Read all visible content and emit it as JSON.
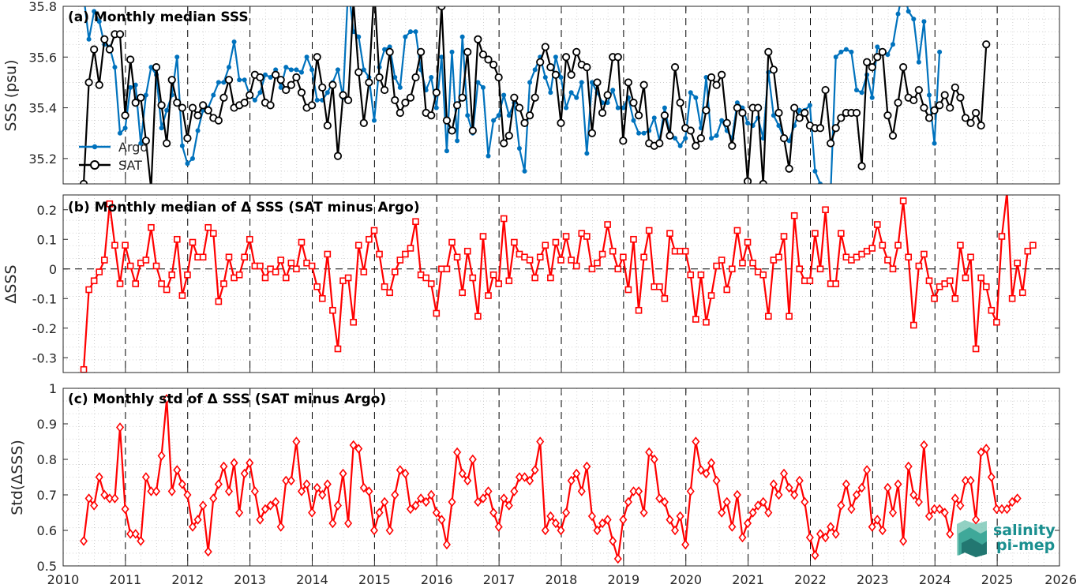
{
  "colors": {
    "argo": "#0072BD",
    "sat": "#000000",
    "delta": "#FF0000",
    "grid": "#c8c8c8",
    "logo": "#1a8f8f"
  },
  "logo": {
    "line1": "salinity",
    "line2": "pi-mep"
  },
  "x_ticks": [
    "2010",
    "2011",
    "2012",
    "2013",
    "2014",
    "2015",
    "2016",
    "2017",
    "2018",
    "2019",
    "2020",
    "2021",
    "2022",
    "2023",
    "2024",
    "2025",
    "2026"
  ],
  "chart_data": [
    {
      "type": "line",
      "title": "(a) Monthly median SSS",
      "xlabel": "",
      "ylabel": "SSS (psu)",
      "xlim": [
        2010,
        2026
      ],
      "ylim": [
        35.1,
        35.8
      ],
      "y_ticks": [
        "35.2",
        "35.4",
        "35.6",
        "35.8"
      ],
      "y_tick_values": [
        35.2,
        35.4,
        35.6,
        35.8
      ],
      "grid": "dotted minor grid, dashed yearly verticals",
      "legend": "bottom-left",
      "x_start": 2010.33,
      "x_step": 0.0833,
      "series": [
        {
          "name": "Argo",
          "marker": "dot",
          "values": [
            35.84,
            35.67,
            35.78,
            35.74,
            35.65,
            35.64,
            35.56,
            35.3,
            35.32,
            35.48,
            35.49,
            35.26,
            35.45,
            35.56,
            35.53,
            35.32,
            35.39,
            35.45,
            35.6,
            35.25,
            35.18,
            35.2,
            35.31,
            35.39,
            35.4,
            35.45,
            35.5,
            35.5,
            35.56,
            35.66,
            35.51,
            35.51,
            35.45,
            35.43,
            35.46,
            35.53,
            35.52,
            35.55,
            35.48,
            35.56,
            35.55,
            35.55,
            35.54,
            35.6,
            35.55,
            35.43,
            35.43,
            35.46,
            35.5,
            35.55,
            35.44,
            35.88,
            35.7,
            35.68,
            35.55,
            35.52,
            35.35,
            35.56,
            35.63,
            35.64,
            35.52,
            35.48,
            35.68,
            35.7,
            35.7,
            35.55,
            35.47,
            35.52,
            35.4,
            35.6,
            35.23,
            35.62,
            35.27,
            35.68,
            35.37,
            35.3,
            35.5,
            35.48,
            35.21,
            35.35,
            35.37,
            35.45,
            35.37,
            35.42,
            35.24,
            35.15,
            35.5,
            35.55,
            35.6,
            35.52,
            35.46,
            35.6,
            35.52,
            35.4,
            35.46,
            35.44,
            35.5,
            35.22,
            35.5,
            35.46,
            35.42,
            35.42,
            35.47,
            35.4,
            35.4,
            35.44,
            35.35,
            35.3,
            35.3,
            35.31,
            35.36,
            35.27,
            35.4,
            35.3,
            35.28,
            35.25,
            35.28,
            35.46,
            35.44,
            35.32,
            35.52,
            35.28,
            35.29,
            35.35,
            35.31,
            35.28,
            35.42,
            35.4,
            35.34,
            35.33,
            35.36,
            35.28,
            35.54,
            35.37,
            35.33,
            35.28,
            35.27,
            35.33,
            35.39,
            35.39,
            35.41,
            35.15,
            35.1,
            35.08,
            35.07,
            35.6,
            35.62,
            35.63,
            35.62,
            35.47,
            35.46,
            35.53,
            35.44,
            35.64,
            35.62,
            35.61,
            35.65,
            35.77,
            35.87,
            35.78,
            35.75,
            35.58,
            35.74,
            35.45,
            35.26,
            35.62
          ]
        },
        {
          "name": "SAT",
          "marker": "circle",
          "values": [
            35.1,
            35.5,
            35.63,
            35.49,
            35.67,
            35.63,
            35.69,
            35.69,
            35.37,
            35.59,
            35.42,
            35.44,
            35.27,
            35.08,
            35.56,
            35.41,
            35.26,
            35.51,
            35.42,
            35.4,
            35.28,
            35.4,
            35.37,
            35.41,
            35.39,
            35.36,
            35.35,
            35.44,
            35.51,
            35.4,
            35.41,
            35.42,
            35.45,
            35.53,
            35.52,
            35.42,
            35.41,
            35.53,
            35.51,
            35.47,
            35.49,
            35.52,
            35.46,
            35.4,
            35.41,
            35.6,
            35.48,
            35.33,
            35.49,
            35.21,
            35.45,
            35.43,
            35.82,
            35.54,
            35.34,
            35.5,
            35.87,
            35.52,
            35.47,
            35.62,
            35.43,
            35.38,
            35.42,
            35.44,
            35.52,
            35.62,
            35.38,
            35.37,
            35.46,
            35.8,
            35.35,
            35.31,
            35.41,
            35.44,
            35.62,
            35.31,
            35.67,
            35.61,
            35.59,
            35.57,
            35.52,
            35.26,
            35.29,
            35.44,
            35.4,
            35.34,
            35.37,
            35.44,
            35.58,
            35.64,
            35.56,
            35.53,
            35.34,
            35.6,
            35.53,
            35.62,
            35.57,
            35.56,
            35.3,
            35.5,
            35.38,
            35.45,
            35.6,
            35.6,
            35.27,
            35.5,
            35.42,
            35.37,
            35.49,
            35.26,
            35.25,
            35.26,
            35.37,
            35.29,
            35.56,
            35.42,
            35.32,
            35.31,
            35.25,
            35.28,
            35.39,
            35.52,
            35.49,
            35.53,
            35.34,
            35.25,
            35.4,
            35.38,
            35.11,
            35.4,
            35.4,
            35.1,
            35.62,
            35.55,
            35.38,
            35.28,
            35.16,
            35.4,
            35.36,
            35.38,
            35.33,
            35.32,
            35.32,
            35.47,
            35.26,
            35.32,
            35.36,
            35.38,
            35.38,
            35.38,
            35.17,
            35.58,
            35.56,
            35.6,
            35.62,
            35.37,
            35.29,
            35.42,
            35.56,
            35.44,
            35.43,
            35.47,
            35.4,
            35.36,
            35.39,
            35.41,
            35.45,
            35.4,
            35.48,
            35.44,
            35.36,
            35.34,
            35.38,
            35.33,
            35.65
          ]
        }
      ]
    },
    {
      "type": "line",
      "title": "(b) Monthly median of Δ SSS (SAT minus Argo)",
      "xlabel": "",
      "ylabel": "ΔSSS",
      "xlim": [
        2010,
        2026
      ],
      "ylim": [
        -0.35,
        0.25
      ],
      "y_ticks": [
        "-0.3",
        "-0.2",
        "-0.1",
        "0",
        "0.1",
        "0.2"
      ],
      "y_tick_values": [
        -0.3,
        -0.2,
        -0.1,
        0,
        0.1,
        0.2
      ],
      "zero_line": "dashed",
      "x_start": 2010.33,
      "x_step": 0.0833,
      "series": [
        {
          "name": "",
          "marker": "square",
          "values": [
            -0.34,
            -0.07,
            -0.04,
            -0.01,
            0.03,
            0.22,
            0.08,
            -0.05,
            0.08,
            0.01,
            -0.05,
            0.02,
            0.03,
            0.14,
            0.01,
            -0.05,
            -0.07,
            -0.02,
            0.1,
            -0.09,
            -0.02,
            0.09,
            0.04,
            0.04,
            0.14,
            0.12,
            -0.11,
            -0.05,
            0.04,
            -0.03,
            -0.02,
            0.04,
            0.1,
            0.01,
            0.01,
            -0.03,
            0.0,
            -0.01,
            0.03,
            -0.03,
            0.02,
            0.0,
            0.09,
            0.02,
            0.01,
            -0.06,
            -0.1,
            0.05,
            -0.14,
            -0.27,
            -0.04,
            -0.03,
            -0.18,
            0.08,
            -0.01,
            0.1,
            0.13,
            0.05,
            -0.06,
            -0.08,
            -0.01,
            0.03,
            0.05,
            0.07,
            0.16,
            -0.02,
            -0.03,
            -0.05,
            -0.15,
            0.0,
            0.0,
            0.09,
            0.04,
            -0.08,
            0.06,
            -0.03,
            -0.16,
            0.11,
            -0.09,
            -0.02,
            -0.05,
            0.17,
            -0.04,
            0.09,
            0.05,
            0.04,
            0.03,
            -0.03,
            0.04,
            0.08,
            -0.03,
            0.09,
            0.03,
            0.11,
            0.03,
            0.01,
            0.12,
            0.11,
            0.0,
            0.02,
            0.05,
            0.15,
            0.06,
            0.0,
            0.04,
            -0.07,
            0.1,
            -0.14,
            0.04,
            0.13,
            -0.06,
            -0.06,
            -0.1,
            0.12,
            0.06,
            0.06,
            0.06,
            -0.02,
            -0.17,
            -0.02,
            -0.18,
            -0.09,
            0.01,
            0.03,
            -0.07,
            0.0,
            0.13,
            0.02,
            0.09,
            0.02,
            -0.01,
            -0.02,
            -0.16,
            0.03,
            0.04,
            0.11,
            -0.16,
            0.18,
            0.0,
            -0.04,
            -0.04,
            0.12,
            0.0,
            0.2,
            -0.05,
            -0.05,
            0.12,
            0.04,
            0.03,
            0.04,
            0.05,
            0.06,
            0.07,
            0.15,
            0.08,
            0.03,
            0.0,
            0.08,
            0.23,
            0.04,
            -0.19,
            0.01,
            0.05,
            -0.04,
            -0.1,
            -0.06,
            -0.05,
            -0.04,
            -0.1,
            0.08,
            -0.03,
            0.04,
            -0.27,
            -0.03,
            -0.06,
            -0.14,
            -0.18,
            0.11,
            0.26,
            -0.1,
            0.02,
            -0.08,
            0.06,
            0.08
          ]
        }
      ]
    },
    {
      "type": "line",
      "title": "(c) Monthly std of Δ SSS (SAT minus Argo)",
      "xlabel": "",
      "ylabel": "Std(ΔSSS)",
      "xlim": [
        2010,
        2026
      ],
      "ylim": [
        0.5,
        1
      ],
      "y_ticks": [
        "0.5",
        "0.6",
        "0.7",
        "0.8",
        "0.9",
        "1"
      ],
      "y_tick_values": [
        0.5,
        0.6,
        0.7,
        0.8,
        0.9,
        1.0
      ],
      "x_start": 2010.33,
      "x_step": 0.0833,
      "series": [
        {
          "name": "",
          "marker": "diamond",
          "values": [
            0.57,
            0.69,
            0.67,
            0.75,
            0.7,
            0.69,
            0.69,
            0.89,
            0.66,
            0.59,
            0.59,
            0.57,
            0.75,
            0.71,
            0.71,
            0.81,
            0.97,
            0.71,
            0.77,
            0.73,
            0.7,
            0.61,
            0.63,
            0.67,
            0.54,
            0.69,
            0.73,
            0.78,
            0.71,
            0.79,
            0.65,
            0.76,
            0.79,
            0.71,
            0.63,
            0.66,
            0.67,
            0.68,
            0.61,
            0.74,
            0.74,
            0.85,
            0.71,
            0.73,
            0.65,
            0.72,
            0.7,
            0.73,
            0.62,
            0.67,
            0.76,
            0.62,
            0.84,
            0.83,
            0.72,
            0.71,
            0.6,
            0.65,
            0.68,
            0.6,
            0.7,
            0.77,
            0.76,
            0.66,
            0.67,
            0.69,
            0.68,
            0.7,
            0.65,
            0.63,
            0.56,
            0.68,
            0.82,
            0.76,
            0.74,
            0.8,
            0.68,
            0.69,
            0.71,
            0.65,
            0.61,
            0.69,
            0.67,
            0.71,
            0.75,
            0.75,
            0.74,
            0.77,
            0.85,
            0.6,
            0.64,
            0.62,
            0.6,
            0.65,
            0.74,
            0.76,
            0.71,
            0.78,
            0.64,
            0.6,
            0.62,
            0.63,
            0.57,
            0.52,
            0.63,
            0.68,
            0.71,
            0.71,
            0.65,
            0.82,
            0.8,
            0.69,
            0.68,
            0.63,
            0.6,
            0.64,
            0.56,
            0.71,
            0.85,
            0.77,
            0.76,
            0.79,
            0.74,
            0.65,
            0.68,
            0.61,
            0.7,
            0.58,
            0.62,
            0.65,
            0.67,
            0.68,
            0.65,
            0.73,
            0.7,
            0.76,
            0.72,
            0.7,
            0.74,
            0.68,
            0.58,
            0.53,
            0.59,
            0.58,
            0.61,
            0.59,
            0.67,
            0.73,
            0.66,
            0.7,
            0.72,
            0.77,
            0.61,
            0.63,
            0.6,
            0.72,
            0.65,
            0.73,
            0.57,
            0.78,
            0.7,
            0.68,
            0.84,
            0.64,
            0.66,
            0.66,
            0.65,
            0.59,
            0.69,
            0.67,
            0.74,
            0.74,
            0.63,
            0.82,
            0.83,
            0.75,
            0.66,
            0.66,
            0.66,
            0.68,
            0.69
          ]
        }
      ]
    }
  ]
}
